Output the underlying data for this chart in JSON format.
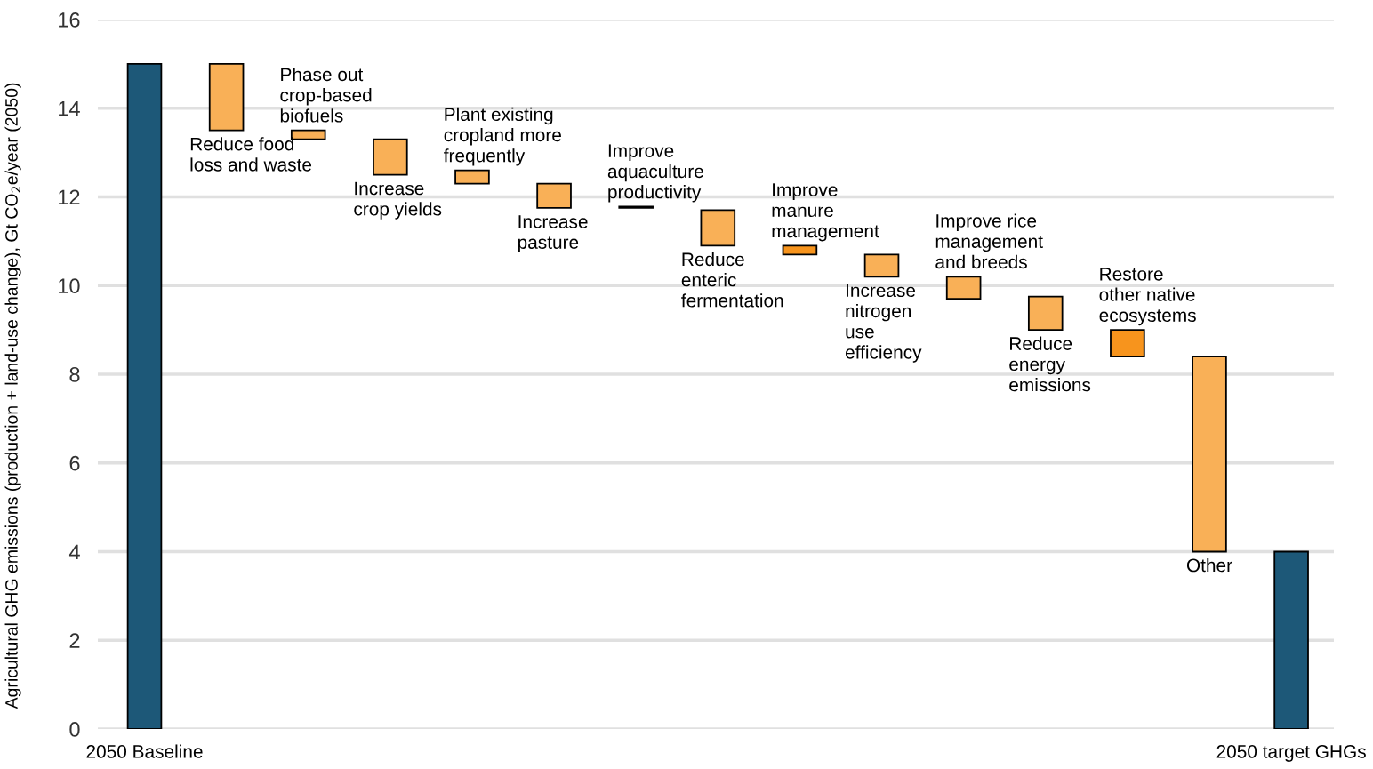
{
  "chart_data": {
    "type": "bar",
    "ylabel": "Agricultural GHG emissions (production + land-use change), Gt CO$_{2}$e/year (2050)",
    "categories": [
      "2050 Baseline",
      "Reduce food\nloss and waste",
      "Phase out\ncrop-based\nbiofuels",
      "Increase\ncrop yields",
      "Plant existing\ncropland more\nfrequently",
      "Increase\npasture",
      "Improve\naquaculture\nproductivity",
      "Reduce\nenteric\nfermentation",
      "Improve\nmanure\nmanagement",
      "Increase\nnitrogen\nuse\nefficiency",
      "Improve rice\nmanagement\nand breeds",
      "Reduce\nenergy\nemissions",
      "Restore\nother native\necosystems",
      "Other",
      "2050 target GHGs"
    ],
    "values": [
      15,
      1.5,
      0.2,
      0.8,
      0.3,
      0.55,
      0.03,
      0.8,
      0.2,
      0.5,
      0.5,
      0.75,
      0.6,
      4.4,
      4
    ],
    "base": [
      0,
      13.5,
      13.3,
      12.5,
      12.3,
      11.75,
      11.75,
      10.9,
      10.7,
      10.2,
      9.7,
      9.0,
      8.4,
      4.0,
      0
    ],
    "colors": [
      "#1d5878",
      "#f9b057",
      "#f9b057",
      "#f9b057",
      "#f9b057",
      "#f9b057",
      "#f9b057",
      "#f9b057",
      "#f7941d",
      "#f9b057",
      "#f9b057",
      "#f9b057",
      "#f7941d",
      "#f9b057",
      "#1d5878"
    ],
    "ylim": [
      0,
      16
    ],
    "yticks": [
      0,
      2,
      4,
      6,
      8,
      10,
      12,
      14,
      16
    ],
    "grid": "y"
  }
}
